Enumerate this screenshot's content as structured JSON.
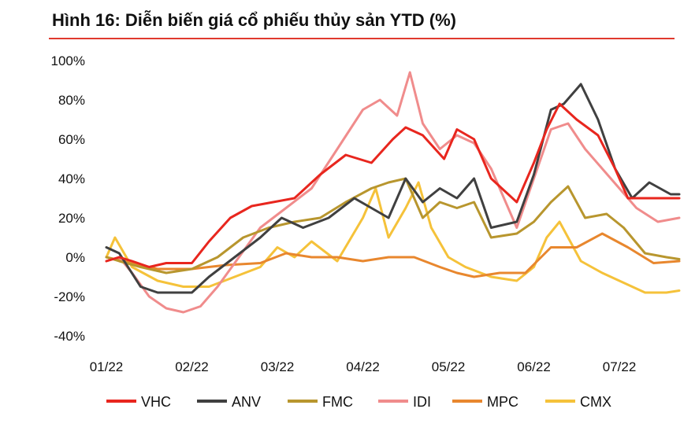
{
  "title": "Hình 16: Diễn biến giá cổ phiếu thủy sản YTD (%)",
  "chart_data": {
    "type": "line",
    "title": "Hình 16: Diễn biến giá cổ phiếu thủy sản YTD (%)",
    "xlabel": "",
    "ylabel": "",
    "ylim": [
      -40,
      100
    ],
    "yticks": [
      "100%",
      "80%",
      "60%",
      "40%",
      "20%",
      "0%",
      "-20%",
      "-40%"
    ],
    "ytick_values": [
      100,
      80,
      60,
      40,
      20,
      0,
      -20,
      -40
    ],
    "xticks": [
      "01/22",
      "02/22",
      "03/22",
      "04/22",
      "05/22",
      "06/22",
      "07/22"
    ],
    "xtick_values": [
      0,
      1,
      2,
      3,
      4,
      5,
      6
    ],
    "x_unit": "months since 01/22",
    "xlim": [
      0,
      6.7
    ],
    "grid": false,
    "legend_position": "bottom",
    "colors": {
      "VHC": "#e8261e",
      "ANV": "#404040",
      "FMC": "#b8962e",
      "IDI": "#f08c8c",
      "MPC": "#e8872e",
      "CMX": "#f5c23a"
    },
    "series": [
      {
        "name": "VHC",
        "x": [
          0,
          0.15,
          0.3,
          0.5,
          0.7,
          1.0,
          1.2,
          1.45,
          1.7,
          1.95,
          2.2,
          2.5,
          2.8,
          3.1,
          3.35,
          3.5,
          3.7,
          3.95,
          4.1,
          4.3,
          4.5,
          4.8,
          5.0,
          5.15,
          5.3,
          5.5,
          5.75,
          5.95,
          6.1,
          6.35,
          6.6,
          6.7
        ],
        "values": [
          -2,
          0,
          -2,
          -5,
          -3,
          -3,
          8,
          20,
          26,
          28,
          30,
          42,
          52,
          48,
          60,
          66,
          62,
          50,
          65,
          60,
          40,
          28,
          48,
          65,
          78,
          70,
          62,
          45,
          30,
          30,
          30,
          30
        ]
      },
      {
        "name": "ANV",
        "x": [
          0,
          0.15,
          0.4,
          0.6,
          0.8,
          1.0,
          1.2,
          1.5,
          1.8,
          2.05,
          2.3,
          2.6,
          2.9,
          3.1,
          3.3,
          3.5,
          3.7,
          3.9,
          4.1,
          4.3,
          4.5,
          4.8,
          5.0,
          5.2,
          5.35,
          5.55,
          5.75,
          5.95,
          6.15,
          6.35,
          6.6,
          6.7
        ],
        "values": [
          5,
          2,
          -15,
          -18,
          -18,
          -18,
          -10,
          0,
          10,
          20,
          15,
          20,
          30,
          25,
          20,
          40,
          28,
          35,
          30,
          40,
          15,
          18,
          42,
          75,
          78,
          88,
          70,
          45,
          30,
          38,
          32,
          32
        ]
      },
      {
        "name": "FMC",
        "x": [
          0,
          0.15,
          0.4,
          0.7,
          1.0,
          1.3,
          1.6,
          1.9,
          2.2,
          2.5,
          2.8,
          3.1,
          3.3,
          3.5,
          3.7,
          3.9,
          4.1,
          4.3,
          4.5,
          4.8,
          5.0,
          5.2,
          5.4,
          5.6,
          5.85,
          6.05,
          6.3,
          6.55,
          6.7
        ],
        "values": [
          0,
          -2,
          -5,
          -8,
          -6,
          0,
          10,
          15,
          18,
          20,
          28,
          35,
          38,
          40,
          20,
          28,
          25,
          28,
          10,
          12,
          18,
          28,
          36,
          20,
          22,
          15,
          2,
          0,
          -1
        ]
      },
      {
        "name": "IDI",
        "x": [
          0,
          0.15,
          0.3,
          0.5,
          0.7,
          0.9,
          1.1,
          1.3,
          1.55,
          1.8,
          2.1,
          2.4,
          2.7,
          3.0,
          3.2,
          3.4,
          3.55,
          3.7,
          3.9,
          4.1,
          4.3,
          4.5,
          4.8,
          5.0,
          5.2,
          5.4,
          5.6,
          5.8,
          6.0,
          6.2,
          6.45,
          6.7
        ],
        "values": [
          -2,
          0,
          -8,
          -20,
          -26,
          -28,
          -25,
          -15,
          0,
          15,
          25,
          35,
          55,
          75,
          80,
          72,
          94,
          68,
          55,
          62,
          58,
          45,
          15,
          40,
          65,
          68,
          55,
          45,
          35,
          25,
          18,
          20
        ]
      },
      {
        "name": "MPC",
        "x": [
          0,
          0.3,
          0.6,
          1.0,
          1.4,
          1.8,
          2.1,
          2.4,
          2.7,
          3.0,
          3.3,
          3.6,
          3.9,
          4.1,
          4.3,
          4.6,
          4.9,
          5.2,
          5.5,
          5.8,
          6.1,
          6.4,
          6.7
        ],
        "values": [
          0,
          -3,
          -6,
          -6,
          -4,
          -3,
          2,
          0,
          0,
          -2,
          0,
          0,
          -5,
          -8,
          -10,
          -8,
          -8,
          5,
          5,
          12,
          5,
          -3,
          -2
        ]
      },
      {
        "name": "CMX",
        "x": [
          0,
          0.1,
          0.3,
          0.6,
          0.9,
          1.2,
          1.5,
          1.8,
          2.0,
          2.2,
          2.4,
          2.7,
          3.0,
          3.15,
          3.3,
          3.5,
          3.65,
          3.8,
          4.0,
          4.2,
          4.5,
          4.8,
          5.0,
          5.15,
          5.3,
          5.55,
          5.8,
          6.0,
          6.3,
          6.55,
          6.7
        ],
        "values": [
          0,
          10,
          -5,
          -12,
          -15,
          -15,
          -10,
          -5,
          5,
          0,
          8,
          -2,
          20,
          35,
          10,
          25,
          38,
          15,
          0,
          -5,
          -10,
          -12,
          -5,
          10,
          18,
          -2,
          -8,
          -12,
          -18,
          -18,
          -17
        ]
      }
    ]
  }
}
